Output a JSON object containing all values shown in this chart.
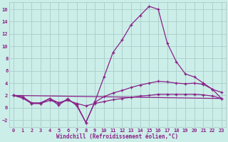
{
  "background_color": "#cceee8",
  "grid_color": "#aacccc",
  "line_color": "#882288",
  "xlabel": "Windchill (Refroidissement éolien,°C)",
  "xlim": [
    -0.5,
    23.5
  ],
  "ylim": [
    -3.2,
    17.2
  ],
  "yticks": [
    -2,
    0,
    2,
    4,
    6,
    8,
    10,
    12,
    14,
    16
  ],
  "xticks": [
    0,
    1,
    2,
    3,
    4,
    5,
    6,
    7,
    8,
    9,
    10,
    11,
    12,
    13,
    14,
    15,
    16,
    17,
    18,
    19,
    20,
    21,
    22,
    23
  ],
  "curve1_x": [
    0,
    1,
    2,
    3,
    4,
    5,
    6,
    7,
    8,
    9,
    10,
    11,
    12,
    13,
    14,
    15,
    16,
    17,
    18,
    19,
    20,
    21,
    22,
    23
  ],
  "curve1_y": [
    2.0,
    1.8,
    0.8,
    0.8,
    1.5,
    0.4,
    1.5,
    0.3,
    -2.4,
    1.0,
    5.0,
    9.0,
    11.0,
    13.5,
    15.0,
    16.5,
    16.0,
    10.5,
    7.5,
    5.5,
    5.0,
    4.0,
    3.0,
    1.5
  ],
  "curve2_x": [
    0,
    1,
    2,
    3,
    4,
    5,
    6,
    7,
    8,
    9,
    10,
    11,
    12,
    13,
    14,
    15,
    16,
    17,
    18,
    19,
    20,
    21,
    22,
    23
  ],
  "curve2_y": [
    2.0,
    1.6,
    0.7,
    0.7,
    1.5,
    0.8,
    1.3,
    0.5,
    -2.4,
    0.9,
    1.8,
    2.4,
    2.8,
    3.3,
    3.7,
    4.0,
    4.3,
    4.2,
    4.0,
    3.9,
    4.0,
    3.8,
    3.0,
    2.5
  ],
  "curve3_x": [
    0,
    1,
    2,
    3,
    4,
    5,
    6,
    7,
    8,
    9,
    10,
    11,
    12,
    13,
    14,
    15,
    16,
    17,
    18,
    19,
    20,
    21,
    22,
    23
  ],
  "curve3_y": [
    2.0,
    1.6,
    0.7,
    0.7,
    1.2,
    0.8,
    1.2,
    0.7,
    0.3,
    0.7,
    1.0,
    1.3,
    1.5,
    1.7,
    1.9,
    2.0,
    2.2,
    2.2,
    2.2,
    2.2,
    2.2,
    2.1,
    1.9,
    1.5
  ],
  "line4_x": [
    0,
    23
  ],
  "line4_y": [
    2.0,
    1.5
  ]
}
